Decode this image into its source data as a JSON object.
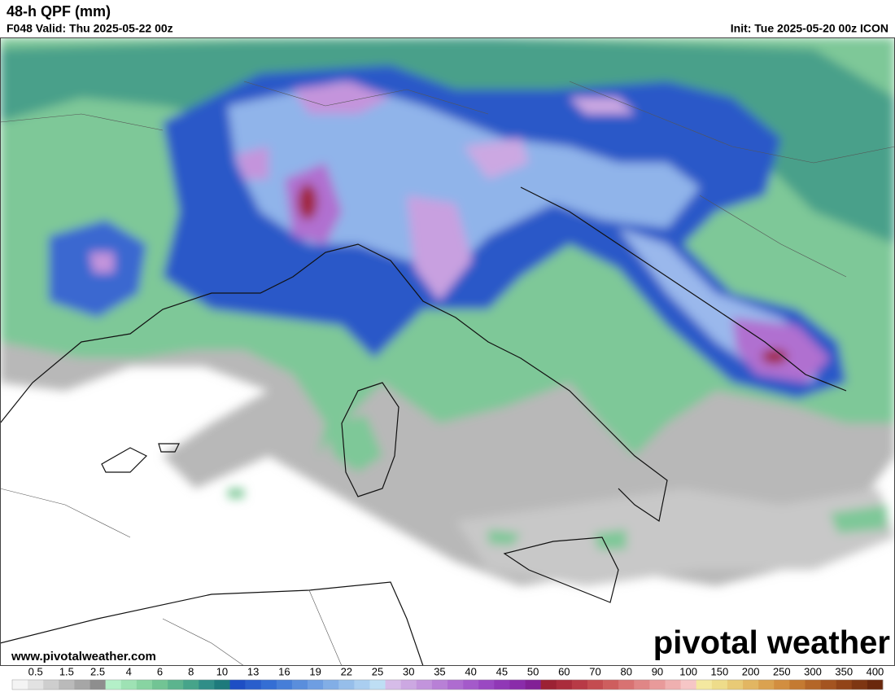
{
  "header": {
    "title": "48-h QPF (mm)",
    "valid": "F048 Valid: Thu 2025-05-22 00z",
    "init": "Init: Tue 2025-05-20 00z ICON"
  },
  "footer": {
    "url": "www.pivotalweather.com",
    "logo": "pivotal weather"
  },
  "colorbar": {
    "ticks": [
      "0.5",
      "1.5",
      "2.5",
      "4",
      "6",
      "8",
      "10",
      "13",
      "16",
      "19",
      "22",
      "25",
      "30",
      "35",
      "40",
      "45",
      "50",
      "60",
      "70",
      "80",
      "90",
      "100",
      "150",
      "200",
      "250",
      "300",
      "350",
      "400"
    ],
    "colors": [
      "#f4f4f4",
      "#e2e2e2",
      "#cecece",
      "#bababa",
      "#a6a6a6",
      "#8e8e8e",
      "#b4f0c8",
      "#9ee2b4",
      "#88d4a2",
      "#72c494",
      "#5cb48e",
      "#46a48a",
      "#308e88",
      "#1e7a7c",
      "#1e4ec4",
      "#2a5ecc",
      "#346ed4",
      "#467ed8",
      "#5a8edc",
      "#6e9ee2",
      "#82aee6",
      "#96beea",
      "#aacef0",
      "#bedef4",
      "#d6bce8",
      "#cca8e2",
      "#c294dc",
      "#b880d6",
      "#ae6cd0",
      "#a45aca",
      "#9a48c2",
      "#9038b6",
      "#8a2caa",
      "#822096",
      "#9c2234",
      "#aa2c3c",
      "#b83a46",
      "#c44c50",
      "#ce5e5e",
      "#d87272",
      "#e08686",
      "#e89a9a",
      "#efb0b0",
      "#f6c6c6",
      "#f4e8a0",
      "#eedc8a",
      "#e8ca76",
      "#e2b662",
      "#daa250",
      "#d28e40",
      "#c47a32",
      "#b46628",
      "#a45420",
      "#924418",
      "#7e3612",
      "#6a280c"
    ]
  }
}
